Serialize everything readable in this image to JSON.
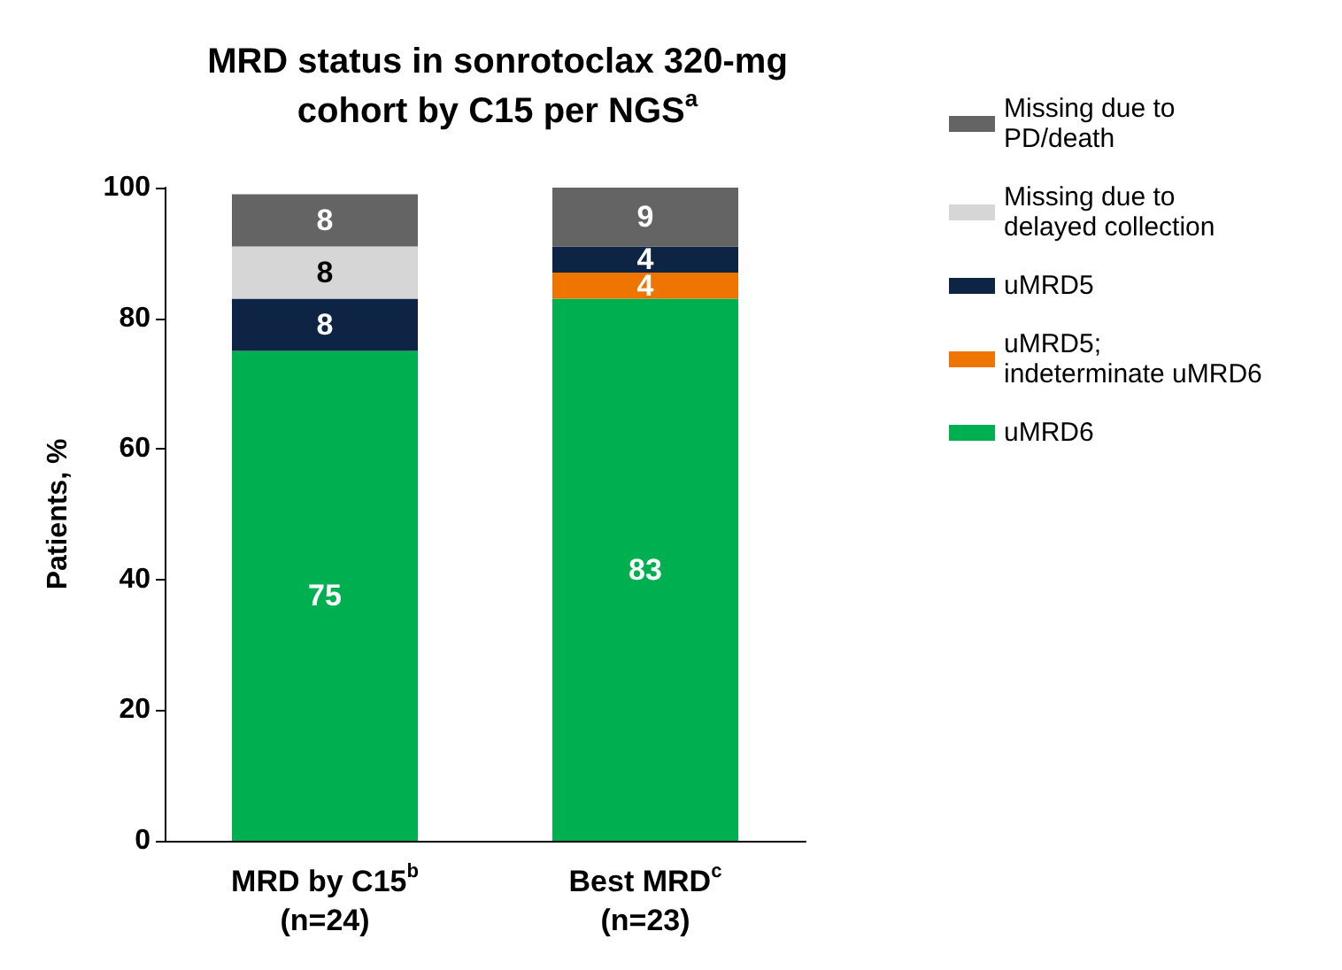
{
  "chart_data": {
    "type": "bar",
    "stacked": true,
    "title": "MRD status in sonrotoclax 320-mg\ncohort by C15 per NGS$^{a}$",
    "ylabel": "Patients, %",
    "categories": [
      "MRD by C15$^{b}$\n(n=24)",
      "Best MRD$^{c}$\n(n=23)"
    ],
    "series": [
      {
        "name": "uMRD6",
        "color": "#00b050",
        "values": [
          75,
          83
        ]
      },
      {
        "name": "uMRD5;\nindeterminate uMRD6",
        "color": "#ee7600",
        "values": [
          null,
          4
        ]
      },
      {
        "name": "uMRD5",
        "color": "#0d2444",
        "values": [
          8,
          4
        ]
      },
      {
        "name": "Missing due to\ndelayed collection",
        "color": "#d6d6d6",
        "values": [
          8,
          null
        ]
      },
      {
        "name": "Missing due to\nPD/death",
        "color": "#646464",
        "values": [
          8,
          9
        ]
      }
    ],
    "ylim": [
      0,
      100
    ],
    "yticks": [
      0,
      20,
      40,
      60,
      80,
      100
    ],
    "grid": false,
    "legend": "right",
    "data_labels": true
  }
}
